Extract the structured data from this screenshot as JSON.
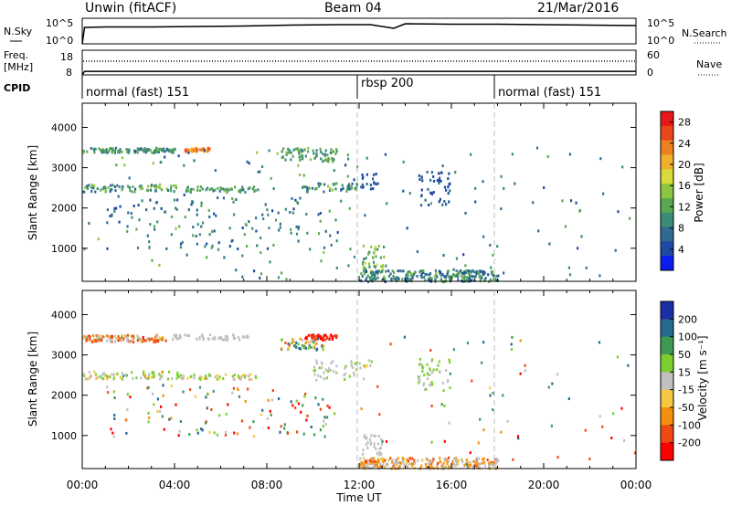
{
  "header": {
    "station": "Unwin (fitACF)",
    "beam": "Beam 04",
    "date": "21/Mar/2016"
  },
  "noise_panel": {
    "left_label": "N.Sky",
    "right_label": "N.Search",
    "left_ticks": [
      "10^5",
      "10^0"
    ],
    "right_ticks": [
      "10^5",
      "10^0"
    ]
  },
  "freq_panel": {
    "left_label_1": "Freq.",
    "left_label_2": "[MHz]",
    "right_label": "Nave",
    "left_ticks": [
      "18",
      "8"
    ],
    "right_ticks": [
      "60",
      "0"
    ]
  },
  "cpid_panel": {
    "label": "CPID",
    "segments": [
      {
        "name": "normal (fast) 151",
        "start": 0,
        "end": 12
      },
      {
        "name": "rbsp 200",
        "start": 12,
        "end": 18
      },
      {
        "name": "normal (fast) 151",
        "start": 18,
        "end": 24
      }
    ]
  },
  "axes": {
    "xlabel": "Time UT",
    "ylabel": "Slant Range [km]",
    "xticks": [
      "00:00",
      "04:00",
      "08:00",
      "12:00",
      "16:00",
      "20:00",
      "00:00"
    ],
    "yticks": [
      "1000",
      "2000",
      "3000",
      "4000"
    ]
  },
  "power_panel": {
    "colorbar_label": "Power [dB]",
    "colorbar_ticks": [
      "28",
      "24",
      "20",
      "16",
      "12",
      "8",
      "4"
    ]
  },
  "velocity_panel": {
    "colorbar_label": "Velocity [m s⁻¹]",
    "colorbar_ticks": [
      "200",
      "100",
      "50",
      "15",
      "-15",
      "-50",
      "-100",
      "-200"
    ]
  },
  "chart_data": [
    {
      "type": "line",
      "name": "noise",
      "x": [
        0,
        0.1,
        1,
        3,
        5,
        7,
        9,
        11,
        12.5,
        13.5,
        14,
        16,
        18,
        20,
        22,
        24
      ],
      "y_log": [
        0,
        3.6,
        3.7,
        3.7,
        3.8,
        3.9,
        4.1,
        4.2,
        4.2,
        3.4,
        4.4,
        4.3,
        4.3,
        4.2,
        4.1,
        4.0
      ],
      "xlim": [
        0,
        24
      ],
      "ylim_log": [
        0,
        5
      ]
    },
    {
      "type": "line",
      "name": "frequency",
      "x": [
        0,
        0.1,
        6,
        12,
        18,
        24
      ],
      "y": [
        8,
        10.3,
        10.3,
        10.3,
        10.3,
        10.3
      ],
      "ylim": [
        8,
        18
      ]
    },
    {
      "type": "heatmap",
      "name": "power",
      "xlim": [
        0,
        24
      ],
      "ylim": [
        180,
        4600
      ],
      "clim": [
        0,
        30
      ],
      "clusters": [
        {
          "t": [
            0,
            4
          ],
          "r": [
            3400,
            3520
          ],
          "v": [
            6,
            14
          ],
          "n": 110
        },
        {
          "t": [
            4.4,
            5.5
          ],
          "r": [
            3430,
            3520
          ],
          "v": [
            20,
            26
          ],
          "n": 40
        },
        {
          "t": [
            8.6,
            11
          ],
          "r": [
            3180,
            3520
          ],
          "v": [
            8,
            14
          ],
          "n": 70
        },
        {
          "t": [
            0,
            4.3
          ],
          "r": [
            2430,
            2620
          ],
          "v": [
            6,
            16
          ],
          "n": 70
        },
        {
          "t": [
            4.3,
            7.5
          ],
          "r": [
            2420,
            2560
          ],
          "v": [
            8,
            14
          ],
          "n": 50
        },
        {
          "t": [
            9.5,
            12
          ],
          "r": [
            2420,
            2650
          ],
          "v": [
            6,
            14
          ],
          "n": 50
        },
        {
          "t": [
            1,
            11
          ],
          "r": [
            1000,
            2300
          ],
          "v": [
            4,
            12
          ],
          "n": 120
        },
        {
          "t": [
            12,
            12.8
          ],
          "r": [
            2500,
            2900
          ],
          "v": [
            3,
            8
          ],
          "n": 18
        },
        {
          "t": [
            14.5,
            15.9
          ],
          "r": [
            2100,
            2950
          ],
          "v": [
            3,
            7
          ],
          "n": 45
        },
        {
          "t": [
            12.1,
            13.1
          ],
          "r": [
            450,
            1100
          ],
          "v": [
            8,
            18
          ],
          "n": 40
        },
        {
          "t": [
            12,
            18
          ],
          "r": [
            200,
            480
          ],
          "v": [
            4,
            14
          ],
          "n": 240
        },
        {
          "t": [
            0,
            12
          ],
          "r": [
            250,
            3550
          ],
          "v": [
            4,
            16
          ],
          "n": 100
        },
        {
          "t": [
            12,
            24
          ],
          "r": [
            250,
            3550
          ],
          "v": [
            4,
            12
          ],
          "n": 60
        }
      ]
    },
    {
      "type": "heatmap",
      "name": "velocity",
      "xlim": [
        0,
        24
      ],
      "ylim": [
        180,
        4600
      ],
      "clim": [
        -250,
        250
      ],
      "clusters": [
        {
          "t": [
            0,
            3.6
          ],
          "r": [
            3350,
            3520
          ],
          "v": [
            -160,
            40
          ],
          "n": 120
        },
        {
          "t": [
            3.6,
            7.2
          ],
          "r": [
            3400,
            3530
          ],
          "v": [
            -12,
            12
          ],
          "n": 50
        },
        {
          "t": [
            9.6,
            11
          ],
          "r": [
            3400,
            3530
          ],
          "v": [
            -230,
            -110
          ],
          "n": 40
        },
        {
          "t": [
            8.5,
            10.5
          ],
          "r": [
            3150,
            3450
          ],
          "v": [
            -80,
            200
          ],
          "n": 50
        },
        {
          "t": [
            0,
            4.3
          ],
          "r": [
            2430,
            2620
          ],
          "v": [
            -40,
            80
          ],
          "n": 70
        },
        {
          "t": [
            4.3,
            7.5
          ],
          "r": [
            2420,
            2560
          ],
          "v": [
            -40,
            70
          ],
          "n": 45
        },
        {
          "t": [
            10,
            12.5
          ],
          "r": [
            2400,
            2900
          ],
          "v": [
            -20,
            60
          ],
          "n": 50
        },
        {
          "t": [
            1,
            11
          ],
          "r": [
            1000,
            2300
          ],
          "v": [
            -220,
            220
          ],
          "n": 120
        },
        {
          "t": [
            14.5,
            15.9
          ],
          "r": [
            2100,
            2950
          ],
          "v": [
            15,
            50
          ],
          "n": 45
        },
        {
          "t": [
            12.1,
            13
          ],
          "r": [
            550,
            1050
          ],
          "v": [
            -12,
            12
          ],
          "n": 30
        },
        {
          "t": [
            12,
            18
          ],
          "r": [
            200,
            480
          ],
          "v": [
            -90,
            30
          ],
          "n": 240
        },
        {
          "t": [
            12,
            24
          ],
          "r": [
            250,
            3550
          ],
          "v": [
            -200,
            200
          ],
          "n": 60
        }
      ]
    }
  ]
}
